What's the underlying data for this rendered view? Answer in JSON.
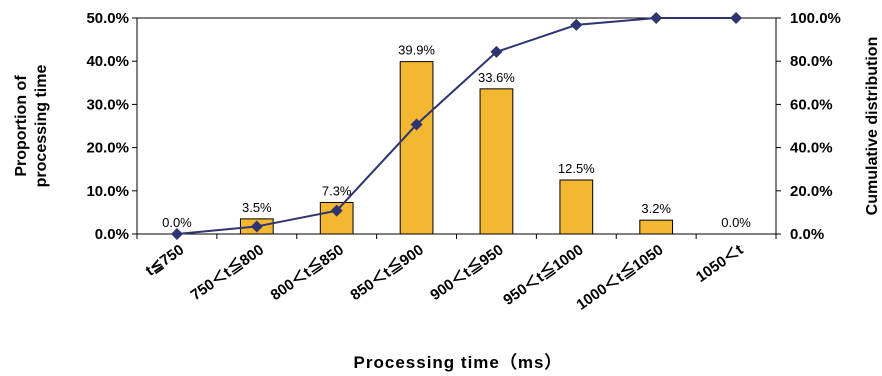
{
  "chart_data": {
    "type": "bar",
    "categories": [
      "t≦750",
      "750＜t≦800",
      "800＜t≦850",
      "850＜t≦900",
      "900＜t≦950",
      "950＜t≦1000",
      "1000＜t≦1050",
      "1050＜t"
    ],
    "series": [
      {
        "type": "bar",
        "axis": "left",
        "values": [
          0.0,
          3.5,
          7.3,
          39.9,
          33.6,
          12.5,
          3.2,
          0.0
        ],
        "labels": [
          "0.0%",
          "3.5%",
          "7.3%",
          "39.9%",
          "33.6%",
          "12.5%",
          "3.2%",
          "0.0%"
        ],
        "color": "#F3B731"
      },
      {
        "type": "line",
        "axis": "right",
        "values": [
          0.0,
          3.5,
          10.8,
          50.7,
          84.3,
          96.8,
          100.0,
          100.0
        ],
        "color": "#2E3570"
      }
    ],
    "xlabel": "Processing time（ms）",
    "ylabel": [
      "Proportion of",
      "processing time"
    ],
    "ylabel_right": "Cumulative distribution",
    "ylim": [
      0,
      50
    ],
    "ylim_right": [
      0,
      100
    ],
    "yticks": [
      "0.0%",
      "10.0%",
      "20.0%",
      "30.0%",
      "40.0%",
      "50.0%"
    ],
    "yticks_right": [
      "0.0%",
      "20.0%",
      "40.0%",
      "60.0%",
      "80.0%",
      "100.0%"
    ],
    "grid": false
  }
}
